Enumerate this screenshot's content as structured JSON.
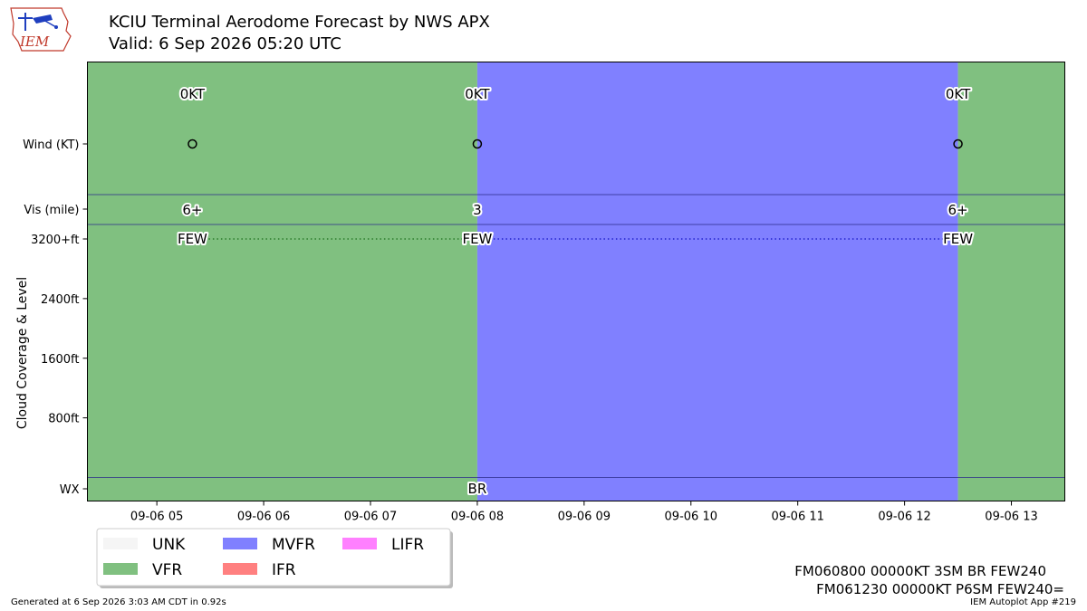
{
  "header": {
    "title": "KCIU Terminal Aerodome Forecast by NWS APX",
    "subtitle": "Valid: 6 Sep 2026 05:20 UTC",
    "logo_text": "IEM"
  },
  "chart_data": {
    "type": "timeline",
    "x_ticks": [
      {
        "hour": 5,
        "label": "09-06 05"
      },
      {
        "hour": 6,
        "label": "09-06 06"
      },
      {
        "hour": 7,
        "label": "09-06 07"
      },
      {
        "hour": 8,
        "label": "09-06 08"
      },
      {
        "hour": 9,
        "label": "09-06 09"
      },
      {
        "hour": 10,
        "label": "09-06 10"
      },
      {
        "hour": 11,
        "label": "09-06 11"
      },
      {
        "hour": 12,
        "label": "09-06 12"
      },
      {
        "hour": 13,
        "label": "09-06 13"
      }
    ],
    "xlim": [
      4.35,
      13.5
    ],
    "row_labels": {
      "wind": "Wind (KT)",
      "vis": "Vis (mile)",
      "wx": "WX"
    },
    "cloud_axis": {
      "ylabel": "Cloud Coverage & Level",
      "ticks": [
        {
          "value": 800,
          "label": "800ft"
        },
        {
          "value": 1600,
          "label": "1600ft"
        },
        {
          "value": 2400,
          "label": "2400ft"
        },
        {
          "value": 3200,
          "label": "3200+ft"
        }
      ],
      "ylim": [
        0,
        3200
      ]
    },
    "categories": [
      {
        "name": "VFR",
        "color": "#80c080",
        "start_hour": 4.35,
        "end_hour": 8.0
      },
      {
        "name": "MVFR",
        "color": "#8080ff",
        "start_hour": 8.0,
        "end_hour": 12.5
      },
      {
        "name": "VFR",
        "color": "#80c080",
        "start_hour": 12.5,
        "end_hour": 13.5
      }
    ],
    "forecasts": [
      {
        "hour": 5.333,
        "wind": "0KT",
        "vis": "6+",
        "cloud": "FEW",
        "cloud_level": 3200,
        "wx": "",
        "line_color": "#2a7a2a"
      },
      {
        "hour": 8.0,
        "wind": "0KT",
        "vis": "3",
        "cloud": "FEW",
        "cloud_level": 3200,
        "wx": "BR",
        "line_color": "#2020cc"
      },
      {
        "hour": 12.5,
        "wind": "0KT",
        "vis": "6+",
        "cloud": "FEW",
        "cloud_level": 3200,
        "wx": "",
        "line_color": "#2020cc"
      }
    ],
    "legend": {
      "placement": "bottom-left",
      "entries": [
        {
          "name": "UNK",
          "color": "#f5f5f5"
        },
        {
          "name": "VFR",
          "color": "#80c080"
        },
        {
          "name": "MVFR",
          "color": "#8080ff"
        },
        {
          "name": "IFR",
          "color": "#ff8080"
        },
        {
          "name": "LIFR",
          "color": "#ff80ff"
        }
      ]
    }
  },
  "taf_lines": [
    "FM060800 00000KT 3SM BR FEW240",
    "FM061230 00000KT P6SM FEW240="
  ],
  "footer": {
    "generated": "Generated at 6 Sep 2026 3:03 AM CDT in 0.92s",
    "app": "IEM Autoplot App #219"
  }
}
